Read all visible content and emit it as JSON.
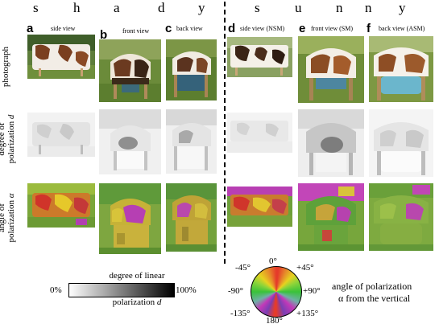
{
  "title_shady": [
    "s",
    "h",
    "a",
    "d",
    "y"
  ],
  "title_sunny": [
    "s",
    "u",
    "n",
    "n",
    "y"
  ],
  "columns": [
    {
      "letter": "a",
      "view": "side view"
    },
    {
      "letter": "b",
      "view": "front view"
    },
    {
      "letter": "c",
      "view": "back view"
    },
    {
      "letter": "d",
      "view": "side view (NSM)"
    },
    {
      "letter": "e",
      "view": "front view (SM)"
    },
    {
      "letter": "f",
      "view": "back view (ASM)"
    }
  ],
  "rows": {
    "photograph": "photograph",
    "degree_line1": "degree of",
    "degree_line2": "polarization",
    "degree_symbol": "d",
    "angle_line1": "angle of",
    "angle_line2": "polarization",
    "angle_symbol": "α"
  },
  "colorbar": {
    "label_top": "degree of linear",
    "label_bottom": "polarization",
    "label_symbol": "d",
    "min": "0%",
    "max": "100%"
  },
  "wheel": {
    "top": "0°",
    "top_left": "-45°",
    "top_right": "+45°",
    "left": "-90°",
    "right": "+90°",
    "bottom_left": "-135°",
    "bottom_right": "+135°",
    "bottom": "180°",
    "caption_line1": "angle of polarization",
    "caption_line2": "α from the vertical"
  },
  "colors": {
    "angle_red": "#e53b2a",
    "angle_yellow": "#e7d21f",
    "angle_green": "#39c23a",
    "angle_magenta": "#c238b8",
    "cow_brown": "#6a3a22",
    "grass": "#4f7a2e"
  }
}
